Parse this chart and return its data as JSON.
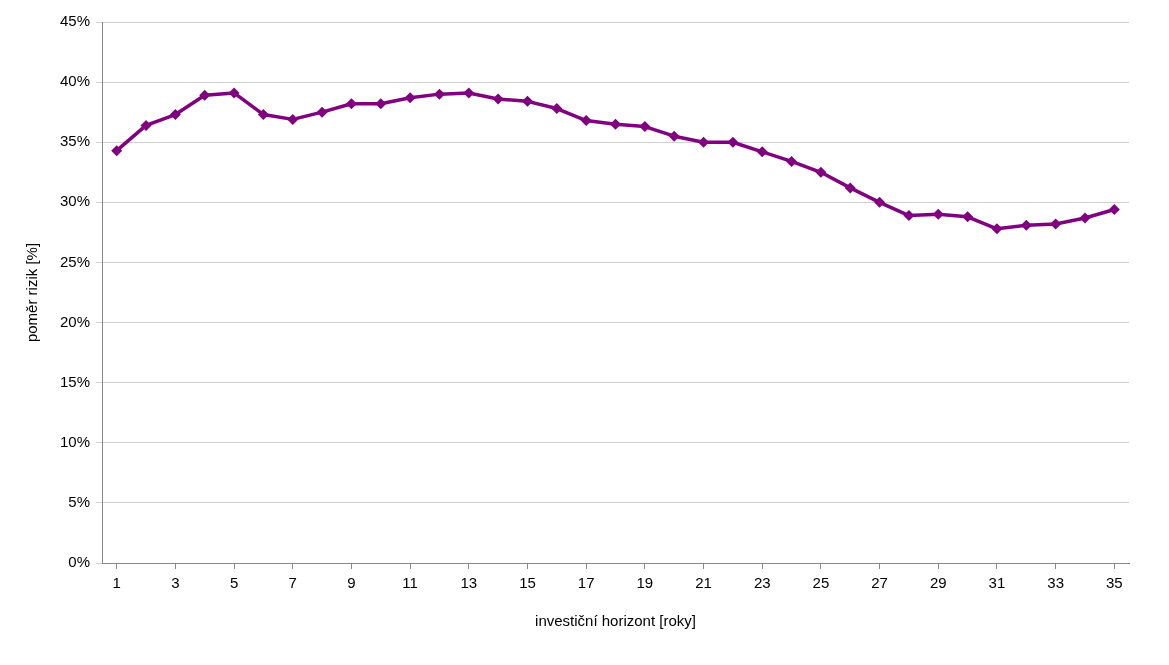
{
  "chart_data": {
    "type": "line",
    "xlabel": "investiční horizont [roky]",
    "ylabel": "poměr rizik [%]",
    "x": [
      1,
      2,
      3,
      4,
      5,
      6,
      7,
      8,
      9,
      10,
      11,
      12,
      13,
      14,
      15,
      16,
      17,
      18,
      19,
      20,
      21,
      22,
      23,
      24,
      25,
      26,
      27,
      28,
      29,
      30,
      31,
      32,
      33,
      34,
      35
    ],
    "series": [
      {
        "color": "#800080",
        "values": [
          34.3,
          36.4,
          37.3,
          38.9,
          39.1,
          37.3,
          36.9,
          37.5,
          38.2,
          38.2,
          38.7,
          39.0,
          39.1,
          38.6,
          38.4,
          37.8,
          36.8,
          36.5,
          36.3,
          35.5,
          35.0,
          35.0,
          34.2,
          33.4,
          32.5,
          31.2,
          30.0,
          28.9,
          29.0,
          28.8,
          27.8,
          28.1,
          28.2,
          28.7,
          29.4
        ]
      }
    ],
    "xlim": [
      0.5,
      35.5
    ],
    "xticks": [
      1,
      3,
      5,
      7,
      9,
      11,
      13,
      15,
      17,
      19,
      21,
      23,
      25,
      27,
      29,
      31,
      33,
      35
    ],
    "ylim": [
      0,
      45
    ],
    "yticks": [
      {
        "value": 0,
        "label": "0%"
      },
      {
        "value": 5,
        "label": "5%"
      },
      {
        "value": 10,
        "label": "10%"
      },
      {
        "value": 15,
        "label": "15%"
      },
      {
        "value": 20,
        "label": "20%"
      },
      {
        "value": 25,
        "label": "25%"
      },
      {
        "value": 30,
        "label": "30%"
      },
      {
        "value": 35,
        "label": "35%"
      },
      {
        "value": 40,
        "label": "40%"
      },
      {
        "value": 45,
        "label": "45%"
      }
    ],
    "grid": "y",
    "legend": false,
    "marker": "diamond",
    "line_style": "solid"
  }
}
